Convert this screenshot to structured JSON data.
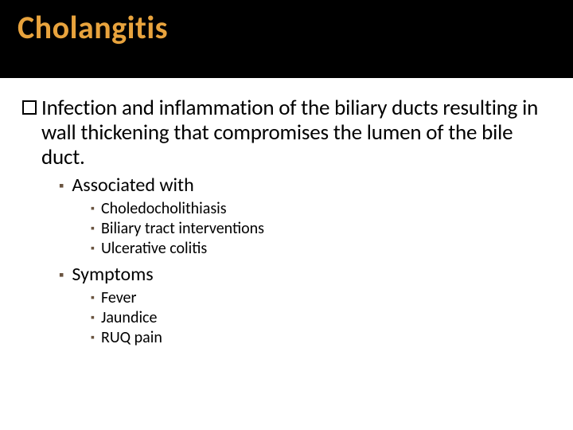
{
  "slide": {
    "title": "Cholangitis",
    "title_color": "#e8a33d",
    "title_bg": "#000000",
    "body_bg": "#ffffff",
    "text_color": "#000000",
    "bullet_marker_color": "#6a5440",
    "title_fontsize": 40,
    "l1_fontsize": 27,
    "l2_fontsize": 24,
    "l3_fontsize": 20,
    "l1": {
      "text": "Infection and inflammation of the biliary ducts resulting in wall thickening that compromises the lumen of the bile duct."
    },
    "l2a": {
      "text": "Associated with"
    },
    "l3a": [
      "Choledocholithiasis",
      "Biliary tract interventions",
      "Ulcerative colitis"
    ],
    "l2b": {
      "text": "Symptoms"
    },
    "l3b": [
      "Fever",
      "Jaundice",
      "RUQ pain"
    ]
  }
}
